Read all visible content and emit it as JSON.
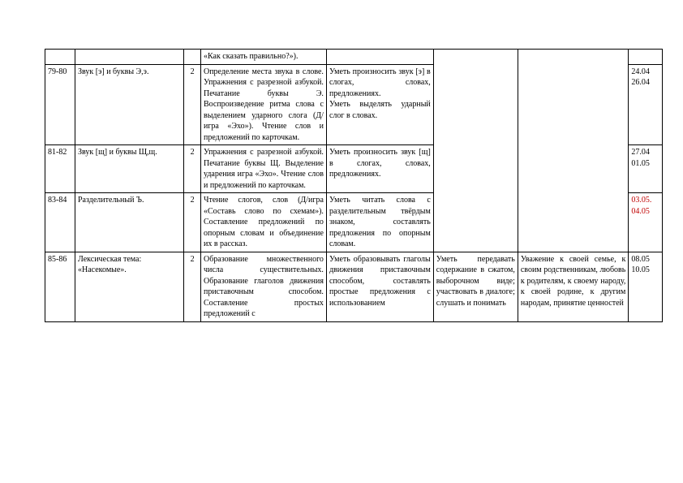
{
  "table": {
    "rows": [
      {
        "num": "",
        "topic": "",
        "hours": "",
        "activity": "«Как сказать правильно?»).",
        "result1": "",
        "result2": "",
        "result3": "",
        "date": "",
        "merge_r2": false,
        "merge_r3": false
      },
      {
        "num": "79-80",
        "topic": "Звук [э]  и буквы Э,э.",
        "hours": "2",
        "activity": "Определение места звука в слове. Упражнения с разрезной азбукой. Печатание буквы Э. Воспроизведение ритма слова с выделением ударного слога (Д/игра «Эхо»). Чтение слов и предложений по карточкам.",
        "result1": "Уметь произносить звук [э] в слогах, словах, предложениях.\nУметь выделять ударный слог в словах.",
        "result2": "",
        "result3": "",
        "date": "24.04\n26.04",
        "merge_r2": true,
        "merge_r3": true
      },
      {
        "num": "81-82",
        "topic": "Звук [щ] и буквы Щ,щ.",
        "hours": "2",
        "activity": "Упражнения с разрезной азбукой. Печатание буквы Щ. Выделение ударения игра «Эхо». Чтение слов и предложений по карточкам.",
        "result1": "Уметь произносить звук [щ] в слогах, словах, предложениях.",
        "result2": "",
        "result3": "",
        "date": "27.04\n01.05",
        "merge_r2": true,
        "merge_r3": true
      },
      {
        "num": "83-84",
        "topic": "Разделительный Ъ.",
        "hours": "2",
        "activity": "Чтение слогов, слов (Д/игра «Составь слово по схемам»). Составление предложений по опорным словам и объединение их в рассказ.",
        "result1": "Уметь читать слова с разделительным твёрдым знаком, составлять предложения по опорным словам.",
        "result2": "",
        "result3": "",
        "date": "03.05.\n04.05",
        "date_red": true,
        "merge_r2": true,
        "merge_r3": true
      },
      {
        "num": "85-86",
        "topic": "Лексическая тема: «Насекомые».",
        "hours": "2",
        "activity": "Образование множественного числа существительных. Образование глаголов движения приставочным способом. Составление простых предложений с",
        "result1": "Уметь образовывать глаголы движения приставочным способом, составлять простые предложения с использованием",
        "result2": "Уметь передавать содержание в сжатом, выборочном виде; участвовать в диалоге; слушать и понимать",
        "result3": "Уважение к своей семье, к своим родственникам, любовь к родителям, к своему народу, к своей родине, к другим народам, принятие ценностей",
        "date": "08.05\n10.05",
        "merge_r2": false,
        "merge_r3": false
      }
    ]
  },
  "style": {
    "background": "#ffffff",
    "border_color": "#000000",
    "text_color": "#000000",
    "red_color": "#c00000",
    "font_family": "Times New Roman",
    "font_size_pt": 10
  }
}
